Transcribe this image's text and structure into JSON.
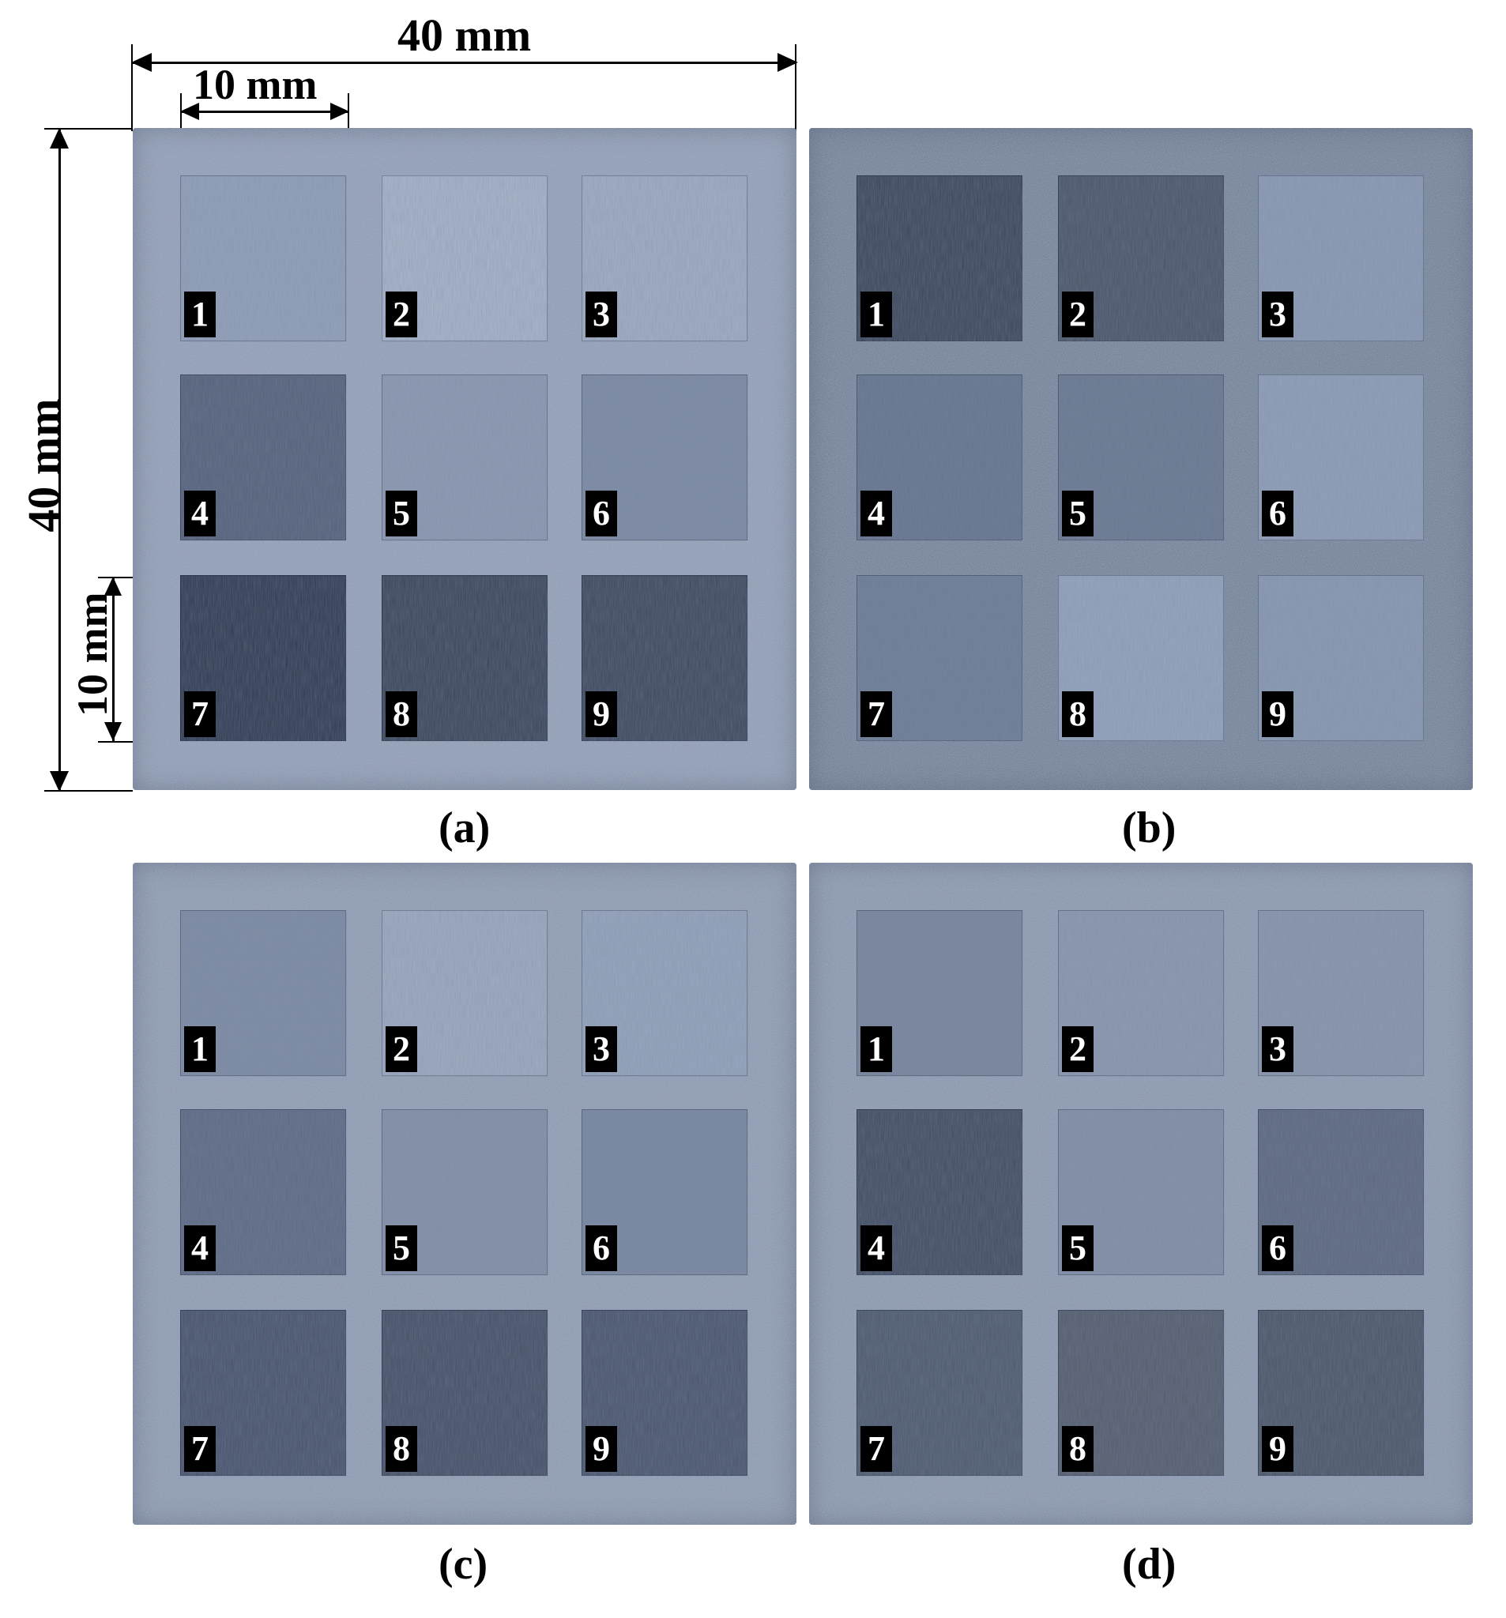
{
  "dimensions": {
    "width_top": "40 mm",
    "width_cell": "10 mm",
    "height_left": "40 mm",
    "height_cell": "10 mm"
  },
  "panels": [
    {
      "caption": "(a)",
      "base_color": "#8a97b0",
      "squares": [
        {
          "label": "1",
          "color": "#94a2bc"
        },
        {
          "label": "2",
          "color": "#aab7cd"
        },
        {
          "label": "3",
          "color": "#a3b0c7"
        },
        {
          "label": "4",
          "color": "#55617a"
        },
        {
          "label": "5",
          "color": "#8e9bb4"
        },
        {
          "label": "6",
          "color": "#7e8ba5"
        },
        {
          "label": "7",
          "color": "#2f3950"
        },
        {
          "label": "8",
          "color": "#3a4459"
        },
        {
          "label": "9",
          "color": "#3d475d"
        }
      ]
    },
    {
      "caption": "(b)",
      "base_color": "#69788f",
      "squares": [
        {
          "label": "1",
          "color": "#3b4559"
        },
        {
          "label": "2",
          "color": "#4b5467"
        },
        {
          "label": "3",
          "color": "#8e9db8"
        },
        {
          "label": "4",
          "color": "#66758f"
        },
        {
          "label": "5",
          "color": "#6a7891"
        },
        {
          "label": "6",
          "color": "#92a1bb"
        },
        {
          "label": "7",
          "color": "#6e7d97"
        },
        {
          "label": "8",
          "color": "#97a6c0"
        },
        {
          "label": "9",
          "color": "#8c9bb5"
        }
      ]
    },
    {
      "caption": "(c)",
      "base_color": "#8693ab",
      "squares": [
        {
          "label": "1",
          "color": "#7f8ca5"
        },
        {
          "label": "2",
          "color": "#a0adc3"
        },
        {
          "label": "3",
          "color": "#98a6bf"
        },
        {
          "label": "4",
          "color": "#5e6a84"
        },
        {
          "label": "5",
          "color": "#8592aa"
        },
        {
          "label": "6",
          "color": "#7a88a2"
        },
        {
          "label": "7",
          "color": "#48536b"
        },
        {
          "label": "8",
          "color": "#454f66"
        },
        {
          "label": "9",
          "color": "#4a556c"
        }
      ]
    },
    {
      "caption": "(d)",
      "base_color": "#8390a8",
      "squares": [
        {
          "label": "1",
          "color": "#7a879f"
        },
        {
          "label": "2",
          "color": "#8d9ab2"
        },
        {
          "label": "3",
          "color": "#8b98b0"
        },
        {
          "label": "4",
          "color": "#414b61"
        },
        {
          "label": "5",
          "color": "#8491a9"
        },
        {
          "label": "6",
          "color": "#5d6880"
        },
        {
          "label": "7",
          "color": "#4e596f"
        },
        {
          "label": "8",
          "color": "#545c6c"
        },
        {
          "label": "9",
          "color": "#4c5567"
        }
      ]
    }
  ]
}
